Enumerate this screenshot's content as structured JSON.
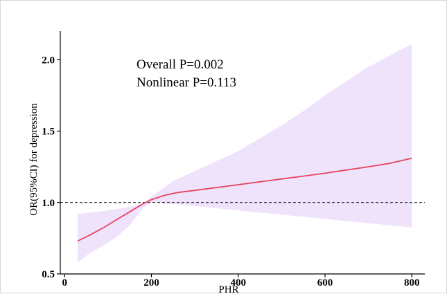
{
  "chart_data": {
    "type": "line",
    "title": "",
    "xlabel": "PHR",
    "ylabel": "OR(95%CI) for depression",
    "xlim": [
      -10,
      830
    ],
    "ylim": [
      0.5,
      2.2
    ],
    "x_ticks": [
      0,
      200,
      400,
      600,
      800
    ],
    "x_tick_labels": [
      "0",
      "200",
      "400",
      "600",
      "800"
    ],
    "y_ticks": [
      0.5,
      1.0,
      1.5,
      2.0
    ],
    "y_tick_labels": [
      "0.5",
      "1.0",
      "1.5",
      "2.0"
    ],
    "reference_line": {
      "y": 1.0,
      "style": "dashed",
      "color": "#000000"
    },
    "annotations": [
      "Overall P=0.002",
      "Nonlinear P=0.113"
    ],
    "series": [
      {
        "type": "line",
        "color": "#e8435f",
        "x": [
          30,
          60,
          90,
          120,
          150,
          180,
          200,
          230,
          260,
          300,
          350,
          400,
          450,
          500,
          550,
          600,
          650,
          700,
          750,
          800
        ],
        "y": [
          0.73,
          0.775,
          0.825,
          0.88,
          0.935,
          0.99,
          1.02,
          1.05,
          1.07,
          1.085,
          1.105,
          1.125,
          1.145,
          1.165,
          1.185,
          1.205,
          1.228,
          1.25,
          1.275,
          1.31
        ]
      },
      {
        "type": "band",
        "color": "#efe2fb",
        "x": [
          30,
          60,
          90,
          120,
          150,
          180,
          200,
          250,
          300,
          350,
          400,
          450,
          500,
          550,
          600,
          650,
          700,
          750,
          800
        ],
        "lower": [
          0.58,
          0.65,
          0.7,
          0.76,
          0.84,
          0.96,
          1.0,
          0.99,
          0.975,
          0.96,
          0.945,
          0.93,
          0.915,
          0.9,
          0.885,
          0.87,
          0.855,
          0.84,
          0.825
        ],
        "upper": [
          0.92,
          0.93,
          0.94,
          0.955,
          0.97,
          0.99,
          1.04,
          1.15,
          1.22,
          1.29,
          1.36,
          1.45,
          1.54,
          1.64,
          1.75,
          1.85,
          1.95,
          2.03,
          2.11
        ]
      }
    ],
    "grid": false,
    "legend": "none"
  }
}
